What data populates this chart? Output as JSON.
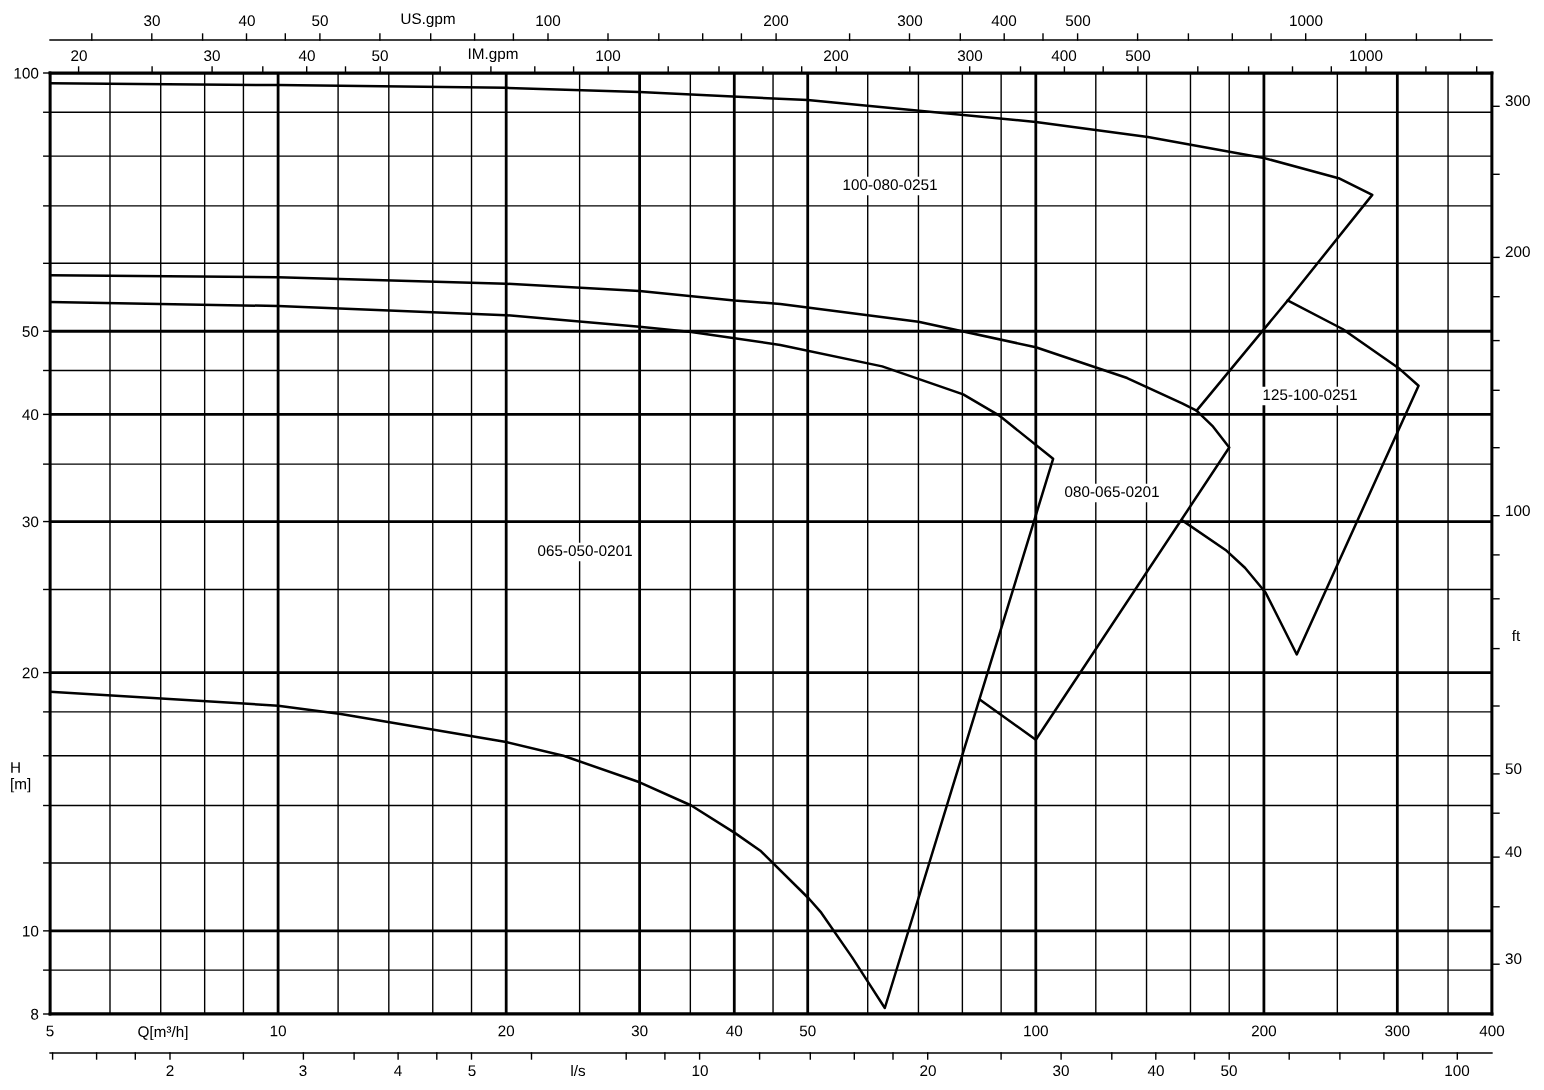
{
  "chart_data": {
    "type": "line",
    "xlabel": "Q[m³/h]",
    "ylabel": "H\n[m]",
    "y2label": "ft",
    "x2label": "IM.gpm",
    "log": "xy",
    "grid": true,
    "xlim": [
      5,
      400
    ],
    "ylim": [
      8,
      100
    ],
    "xticks": [
      5,
      {
        "value": 6,
        "label": null
      },
      {
        "value": 7,
        "label": null
      },
      {
        "value": 8,
        "label": null
      },
      {
        "value": 9,
        "label": null
      },
      10,
      {
        "value": 12,
        "label": null
      },
      {
        "value": 14,
        "label": null
      },
      {
        "value": 16,
        "label": null
      },
      {
        "value": 18,
        "label": null
      },
      20,
      {
        "value": 25,
        "label": null
      },
      30,
      {
        "value": 35,
        "label": null
      },
      40,
      {
        "value": 45,
        "label": null
      },
      50,
      {
        "value": 60,
        "label": null
      },
      {
        "value": 70,
        "label": null
      },
      {
        "value": 80,
        "label": null
      },
      {
        "value": 90,
        "label": null
      },
      100,
      {
        "value": 120,
        "label": null
      },
      {
        "value": 140,
        "label": null
      },
      {
        "value": 160,
        "label": null
      },
      {
        "value": 180,
        "label": null
      },
      200,
      {
        "value": 250,
        "label": null
      },
      300,
      {
        "value": 350,
        "label": null
      },
      400
    ],
    "yticks": [
      8,
      {
        "value": 9,
        "label": null
      },
      10,
      {
        "value": 12,
        "label": null
      },
      {
        "value": 14,
        "label": null
      },
      {
        "value": 16,
        "label": null
      },
      {
        "value": 18,
        "label": null
      },
      20,
      {
        "value": 25,
        "label": null
      },
      30,
      {
        "value": 35,
        "label": null
      },
      40,
      {
        "value": 45,
        "label": null
      },
      50,
      {
        "value": 60,
        "label": null
      },
      {
        "value": 70,
        "label": null
      },
      {
        "value": 80,
        "label": null
      },
      {
        "value": 90,
        "label": null
      },
      100
    ],
    "series": [
      {
        "color": "#000000",
        "x": [
          5,
          10,
          20,
          30,
          50,
          100,
          140.6,
          200,
          251,
          278,
          215,
          163
        ],
        "values": [
          97.3,
          96.8,
          96.1,
          95.0,
          93.0,
          87.7,
          84.2,
          79.6,
          75.4,
          72.1,
          54.3,
          40.4
        ]
      },
      {
        "color": "#000000",
        "x": [
          5,
          10,
          20,
          30,
          40,
          46,
          70,
          100,
          132,
          156,
          163,
          171.4,
          180,
          100,
          84.4
        ],
        "values": [
          58.1,
          57.8,
          56.8,
          55.7,
          54.3,
          53.8,
          51.3,
          47.9,
          44.1,
          41.2,
          40.4,
          38.7,
          36.6,
          16.7,
          18.6
        ]
      },
      {
        "color": "#000000",
        "x": [
          156,
          178,
          188.8,
          201,
          221,
          320,
          302,
          254,
          215
        ],
        "values": [
          30.1,
          27.8,
          26.5,
          24.8,
          21.0,
          43.2,
          45.2,
          50.3,
          54.3
        ]
      },
      {
        "color": "#000000",
        "x": [
          5,
          10,
          20,
          30,
          35.1,
          46,
          62.7,
          80.2,
          89.4,
          105.4,
          63.2,
          60.4,
          57.2,
          52.1,
          50.2,
          43.3,
          40.1,
          35.1,
          30,
          23.8,
          20,
          12.1,
          10,
          5
        ],
        "values": [
          54.1,
          53.5,
          52.2,
          50.6,
          49.9,
          48.2,
          45.5,
          42.2,
          39.9,
          35.5,
          8.13,
          8.65,
          9.32,
          10.5,
          10.9,
          12.4,
          13.0,
          14.0,
          14.9,
          16.0,
          16.6,
          17.9,
          18.3,
          19.0
        ]
      }
    ],
    "annotations": [
      "100-080-0251",
      "080-065-0201",
      "125-100-0251",
      "065-050-0201",
      "US.gpm",
      "30",
      "40",
      "50",
      "100",
      "200",
      "300",
      "400",
      "500",
      "1000",
      "20",
      "30",
      "40",
      "50",
      "100",
      "200",
      "300",
      "400",
      "500",
      "1000",
      "l/s",
      "2",
      "3",
      "4",
      "5",
      "10",
      "20",
      "30",
      "40",
      "50",
      "100",
      "30",
      "40",
      "50",
      "100",
      "200",
      "300"
    ]
  }
}
